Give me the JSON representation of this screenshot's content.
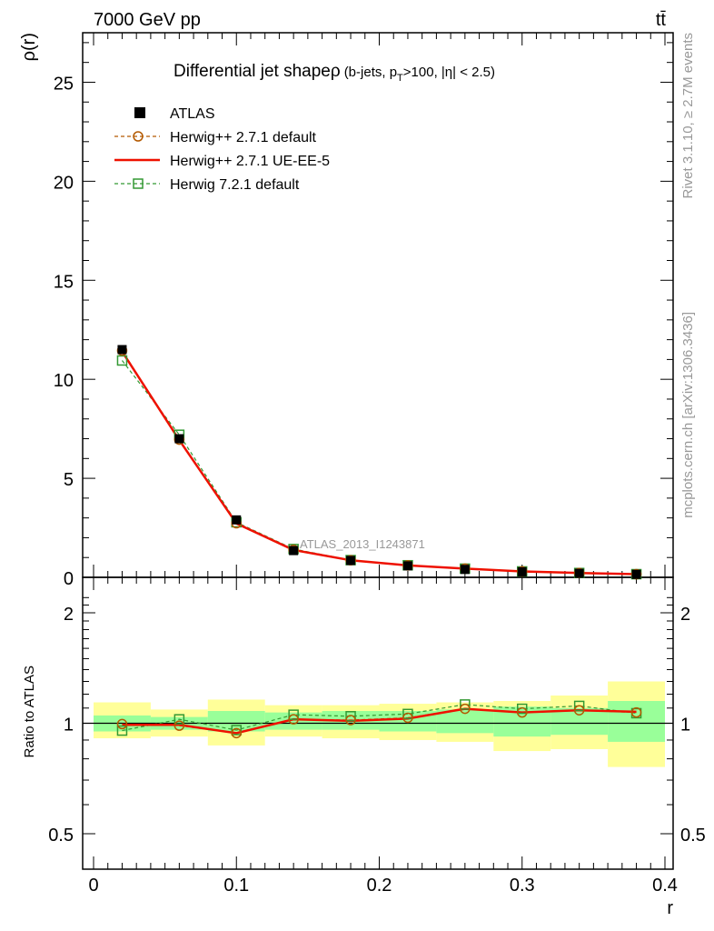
{
  "header": {
    "left": "7000 GeV pp",
    "right": "tt̄"
  },
  "side_labels": {
    "rivet": "Rivet 3.1.10, ≥ 2.7M events",
    "mcplots": "mcplots.cern.ch [arXiv:1306.3436]"
  },
  "chart_data": {
    "type": "scatter",
    "title_main": "Differential jet shape",
    "title_rho": "ρ",
    "title_cut": "(b-jets, p",
    "title_cut_sub": "T",
    "title_cut_rest": ">100, |η| < 2.5)",
    "analysis_label": "ATLAS_2013_I1243871",
    "xlabel": "r",
    "ylabel_main": "ρ(r)",
    "ylabel_ratio": "Ratio to ATLAS",
    "xlim": [
      0,
      0.4
    ],
    "ylim_main": [
      0,
      27.5
    ],
    "ylim_ratio": [
      0.5,
      2.0
    ],
    "x_ticks": [
      "0",
      "0.1",
      "0.2",
      "0.3",
      "0.4"
    ],
    "y_ticks_main": [
      "0",
      "5",
      "10",
      "15",
      "20",
      "25"
    ],
    "y_ticks_ratio": [
      "0.5",
      "1",
      "2"
    ],
    "x": [
      0.02,
      0.06,
      0.1,
      0.14,
      0.18,
      0.22,
      0.26,
      0.3,
      0.34,
      0.38
    ],
    "bins": [
      [
        0.0,
        0.04
      ],
      [
        0.04,
        0.08
      ],
      [
        0.08,
        0.12
      ],
      [
        0.12,
        0.16
      ],
      [
        0.16,
        0.2
      ],
      [
        0.2,
        0.24
      ],
      [
        0.24,
        0.28
      ],
      [
        0.28,
        0.32
      ],
      [
        0.32,
        0.36
      ],
      [
        0.36,
        0.4
      ]
    ],
    "series": [
      {
        "name": "ATLAS",
        "style": "data",
        "color": "#000000",
        "values": [
          11.5,
          7.0,
          2.9,
          1.35,
          0.85,
          0.58,
          0.4,
          0.28,
          0.2,
          0.15
        ],
        "band_inner": [
          [
            0.95,
            1.05
          ],
          [
            0.96,
            1.04
          ],
          [
            0.95,
            1.08
          ],
          [
            0.96,
            1.07
          ],
          [
            0.96,
            1.08
          ],
          [
            0.95,
            1.08
          ],
          [
            0.94,
            1.09
          ],
          [
            0.92,
            1.11
          ],
          [
            0.93,
            1.1
          ],
          [
            0.89,
            1.15
          ]
        ],
        "band_outer": [
          [
            0.91,
            1.14
          ],
          [
            0.92,
            1.09
          ],
          [
            0.87,
            1.16
          ],
          [
            0.92,
            1.12
          ],
          [
            0.91,
            1.12
          ],
          [
            0.9,
            1.13
          ],
          [
            0.89,
            1.14
          ],
          [
            0.84,
            1.15
          ],
          [
            0.85,
            1.19
          ],
          [
            0.76,
            1.3
          ]
        ]
      },
      {
        "name": "Herwig++ 2.7.1 default",
        "style": "dashed-circle",
        "color": "#b35900",
        "values": [
          11.45,
          6.95,
          2.73,
          1.39,
          0.86,
          0.6,
          0.44,
          0.3,
          0.22,
          0.16
        ],
        "ratio": [
          0.995,
          0.985,
          0.94,
          1.025,
          1.02,
          1.035,
          1.095,
          1.07,
          1.085,
          1.07
        ]
      },
      {
        "name": "Herwig++ 2.7.1 UE-EE-5",
        "style": "solid",
        "color": "#ee1100",
        "values": [
          11.4,
          6.93,
          2.72,
          1.38,
          0.86,
          0.6,
          0.44,
          0.3,
          0.22,
          0.16
        ],
        "ratio": [
          0.99,
          0.99,
          0.94,
          1.025,
          1.015,
          1.03,
          1.095,
          1.07,
          1.085,
          1.075
        ]
      },
      {
        "name": "Herwig 7.2.1 default",
        "style": "dashed-square",
        "color": "#339933",
        "values": [
          10.95,
          7.2,
          2.78,
          1.43,
          0.87,
          0.61,
          0.44,
          0.3,
          0.22,
          0.16
        ],
        "ratio": [
          0.955,
          1.025,
          0.958,
          1.055,
          1.045,
          1.06,
          1.125,
          1.095,
          1.115,
          1.065
        ]
      }
    ]
  }
}
